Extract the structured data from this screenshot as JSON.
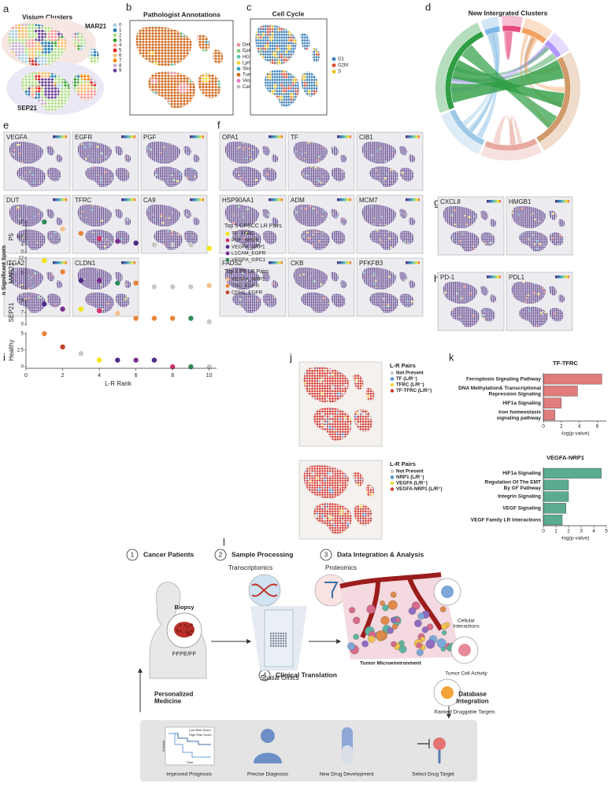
{
  "panels": {
    "a": {
      "letter": "a",
      "title": "Visium Clusters",
      "samples": [
        "MAR21",
        "SEP21"
      ],
      "legend": {
        "labels": [
          "0",
          "1",
          "2",
          "3",
          "4",
          "5",
          "6",
          "7",
          "8",
          "9"
        ],
        "colors": [
          "#a6cee3",
          "#1f78b4",
          "#b2df8a",
          "#33a02c",
          "#fb9a99",
          "#e31a1c",
          "#fdbf6f",
          "#ff7f00",
          "#cab2d6",
          "#6a3d9a"
        ]
      }
    },
    "b": {
      "letter": "b",
      "title": "Pathologist Annotations",
      "legend": {
        "labels": [
          "Debris",
          "Epithelium",
          "HG dysplasia/Tumor",
          "Lymphocytes",
          "Stroma",
          "Tumor",
          "Vessels",
          "Cannot be assessed"
        ],
        "colors": [
          "#e7969c",
          "#7fc97f",
          "#66c2a5",
          "#f2d43a",
          "#3aa0c8",
          "#d2691e",
          "#e377c2",
          "#bbbbbb"
        ]
      }
    },
    "c": {
      "letter": "c",
      "title": "Cell Cycle",
      "legend": {
        "labels": [
          "G1",
          "G2M",
          "S"
        ],
        "colors": [
          "#3a7fb8",
          "#e34a33",
          "#f0c020"
        ]
      }
    },
    "d": {
      "letter": "d",
      "title": "New Intergrated Clusters"
    },
    "e": {
      "letter": "e",
      "genes": [
        "VEGFA",
        "EGFR",
        "PGF",
        "DUT",
        "TFRC",
        "CA9",
        "ITGA2",
        "CLDN1"
      ]
    },
    "f": {
      "letter": "f",
      "genes": [
        "OPA1",
        "TF",
        "CIB1",
        "HSP90AA1",
        "ADM",
        "MCM7",
        "FADS2",
        "CKB",
        "PFKFB3"
      ]
    },
    "g": {
      "letter": "g",
      "genes": [
        "CXCL8",
        "HMGB1"
      ]
    },
    "h": {
      "letter": "h",
      "genes": [
        "PD-1",
        "PDL1"
      ]
    },
    "i": {
      "letter": "i",
      "type": "scatter",
      "ylabel": "n Significant Spots",
      "xlabel": "L-R Rank",
      "x": [
        1,
        2,
        3,
        4,
        5,
        6,
        7,
        8,
        9,
        10
      ],
      "xlim": [
        0,
        10.4
      ],
      "xticks": [
        0,
        2,
        4,
        6,
        8,
        10
      ],
      "rows": [
        {
          "name": "P5",
          "name_color": "#e69138",
          "ylim": [
            0,
            17
          ],
          "yticks": [
            0,
            4,
            8.5,
            17
          ],
          "values": [
            17,
            13,
            10.5,
            7.5,
            6,
            5,
            4,
            4,
            4,
            2
          ],
          "colors": [
            "#2e8b57",
            "#f6c08f",
            "#e8833a",
            "#d6336c",
            "#7b2d8e",
            "#4b2a85",
            "#c8c8c8",
            "#c8c8c8",
            "#c8c8c8",
            "#f2e600"
          ]
        },
        {
          "name": "MAR21",
          "name_color": "#1fa3c4",
          "ylim": [
            0,
            12
          ],
          "yticks": [
            0,
            6,
            12
          ],
          "values": [
            11,
            6.5,
            3,
            3,
            2,
            2,
            0.5,
            0.5,
            0.5,
            1
          ],
          "colors": [
            "#f2e600",
            "#e8833a",
            "#4b2a85",
            "#7b2d8e",
            "#2e8b57",
            "#e8833a",
            "#c8c8c8",
            "#c8c8c8",
            "#c8c8c8",
            "#f6c08f"
          ]
        },
        {
          "name": "SEP21",
          "name_color": "#2d2f8f",
          "ylim": [
            0,
            14
          ],
          "yticks": [
            0,
            7,
            14
          ],
          "values": [
            12,
            9,
            9,
            8,
            6.5,
            3.5,
            3.5,
            3.5,
            3.5,
            1.5
          ],
          "colors": [
            "#4b2a85",
            "#7b2d8e",
            "#f2e600",
            "#d6336c",
            "#f6c08f",
            "#e8833a",
            "#e8833a",
            "#e8833a",
            "#2e8b57",
            "#c8c8c8"
          ]
        },
        {
          "name": "Healthy",
          "name_color": "#d62728",
          "ylim": [
            0,
            5
          ],
          "yticks": [
            0,
            2.5,
            5
          ],
          "values": [
            5,
            3,
            2,
            1,
            1,
            1,
            1,
            0,
            0,
            0
          ],
          "colors": [
            "#e8833a",
            "#c1432b",
            "#c8c8c8",
            "#f2e600",
            "#4b2a85",
            "#7b2d8e",
            "#4b2a85",
            "#d6336c",
            "#2e8b57",
            "#c8c8c8"
          ]
        }
      ],
      "legend_groups": [
        {
          "title": "Top 5 OPSCC LR Pairs",
          "labels": [
            "TF_TFRC",
            "PGF_NRP1",
            "VEGFA_NRP1",
            "L1CAM_EGFR",
            "VEGFA_GPC1"
          ],
          "colors": [
            "#f2e600",
            "#d6336c",
            "#4b2a85",
            "#7b2d8e",
            "#2e8b57"
          ]
        },
        {
          "title": "Top 3 P5 LR Pairs",
          "labels": [
            "VEGFA_NRP2",
            "TNC_EGFR",
            "CDH1_EGFR"
          ],
          "colors": [
            "#f6c08f",
            "#e8833a",
            "#c1432b"
          ]
        }
      ]
    },
    "j": {
      "letter": "j",
      "legends": [
        {
          "title": "L-R Pairs",
          "labels": [
            "Not Present",
            "TF (L/R⁻)",
            "TFRC (L/R⁻)",
            "TF-TFRC (L/R⁺)"
          ],
          "colors": [
            "#c8c8c8",
            "#4a90d9",
            "#f2d43a",
            "#d0342c"
          ]
        },
        {
          "title": "L-R Pairs",
          "labels": [
            "Not Present",
            "NRP1 (L/R⁻)",
            "VEGFA (L/R⁻)",
            "VEGFA-NRP1 (L/R⁺)"
          ],
          "colors": [
            "#c8c8c8",
            "#4a90d9",
            "#f2d43a",
            "#d0342c"
          ]
        }
      ]
    },
    "k": {
      "letter": "k",
      "charts": [
        {
          "type": "bar",
          "title": "TF-TFRC",
          "categories": [
            "Ferroptosis Signaling Pathway",
            "DNA Methylation& Transcriptional\nRepression Signaling",
            "HIF1a Signaling",
            "Iron homeostasis\nsignaling pathway"
          ],
          "values": [
            6.5,
            3.8,
            2.0,
            1.3
          ],
          "color": "#e07c7c",
          "xlim": [
            0,
            7
          ],
          "xticks": [
            0,
            2,
            4,
            6
          ],
          "xlabel": "-log(p-value)"
        },
        {
          "type": "bar",
          "title": "VEGFA-NRP1",
          "categories": [
            "HIF1a Signaling",
            "Regulation Of The EMT\nBy GF Pathway",
            "Integrin Signaling",
            "VEGF Signaling",
            "VEGF Family LR Interactions"
          ],
          "values": [
            4.6,
            2.0,
            2.0,
            1.8,
            1.5
          ],
          "color": "#5bab8f",
          "xlim": [
            0,
            5
          ],
          "xticks": [
            0,
            1,
            2,
            3,
            4,
            5
          ],
          "xlabel": "-log(p-value)"
        }
      ]
    },
    "l": {
      "letter": "l",
      "steps": [
        {
          "number": "1",
          "title": "Cancer Patients"
        },
        {
          "number": "2",
          "title": "Sample Processing"
        },
        {
          "number": "3",
          "title": "Data Integration & Analysis"
        },
        {
          "number": "4",
          "title": "Clinical Translation"
        }
      ],
      "biopsy": "Biopsy",
      "sample": "FFPE/FF",
      "transcriptomics": "Transcriptomics",
      "proteomics": "Proteomics",
      "spatial": "Spatial Omics",
      "tme": "Tumor Microenvironment",
      "cellular": "Cellular\nInteractions",
      "activity": "Tumor Cell Activity",
      "targets": "Ranked Druggable Targets",
      "personalized": "Personalized\nMedicine",
      "database": "Database\nIntegration",
      "outcomes": [
        "Improved Prognosis",
        "Precise Diagnosis",
        "New Drug Development",
        "Select Drug Target"
      ],
      "km": {
        "low": "Low Risk Score",
        "high": "High Risk Score",
        "ylabel": "Survival",
        "xlabel": "Time"
      }
    }
  }
}
